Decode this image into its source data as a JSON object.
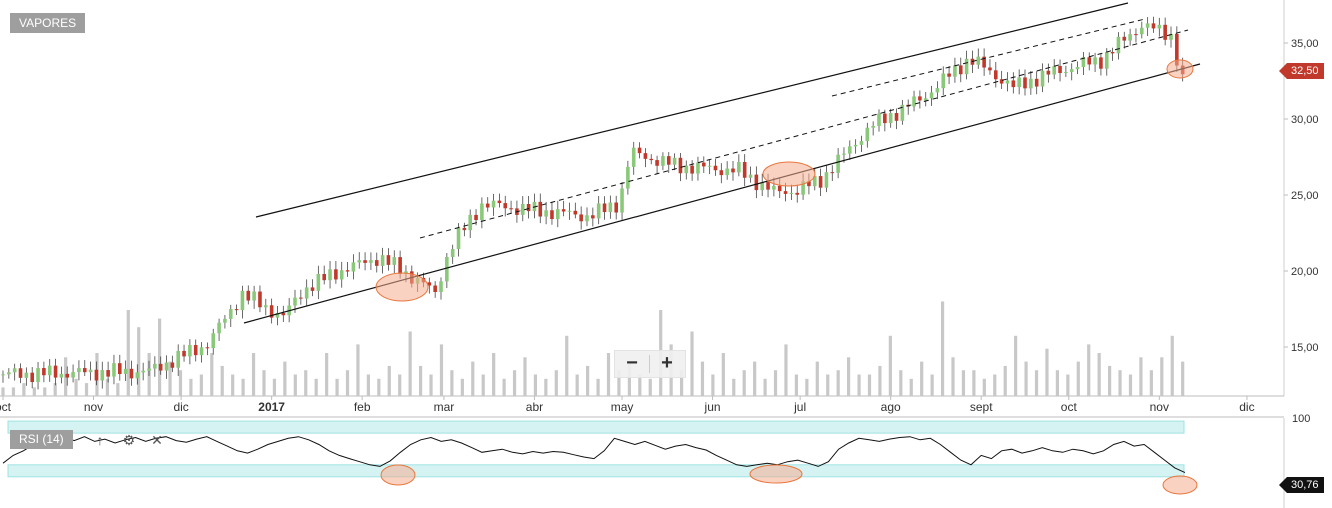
{
  "symbol": "VAPORES",
  "indicator_label": "RSI (14)",
  "last_price_label": "32,50",
  "last_rsi_label": "30,76",
  "zoom": {
    "out_label": "−",
    "in_label": "+"
  },
  "colors": {
    "up": "#8bc97a",
    "down": "#c0392b",
    "volume": "#c8c8c8",
    "rsi_band": "#d6f3f3",
    "annotation": "#f4ad8f"
  },
  "chart_data": [
    {
      "type": "candlestick",
      "title": "",
      "x_labels": [
        "oct",
        "nov",
        "dic",
        "2017",
        "feb",
        "mar",
        "abr",
        "may",
        "jun",
        "jul",
        "ago",
        "sept",
        "oct",
        "nov",
        "dic"
      ],
      "y_ticks": [
        "35,00",
        "30,00",
        "25,00",
        "20,00",
        "15,00"
      ],
      "ylim": [
        13,
        37.5
      ],
      "grid": false,
      "last_value": 32.5,
      "price_path": [
        {
          "date": "2016-10-01",
          "close": 13.2
        },
        {
          "date": "2016-11-20",
          "close": 13.4
        },
        {
          "date": "2016-12-10",
          "close": 15.2
        },
        {
          "date": "2016-12-22",
          "close": 18.5
        },
        {
          "date": "2016-12-30",
          "close": 17.6
        },
        {
          "date": "2017-01-05",
          "close": 17.0
        },
        {
          "date": "2017-01-12",
          "close": 18.8
        },
        {
          "date": "2017-01-24",
          "close": 20.0
        },
        {
          "date": "2017-02-07",
          "close": 20.9
        },
        {
          "date": "2017-02-21",
          "close": 19.3
        },
        {
          "date": "2017-02-26",
          "close": 18.5
        },
        {
          "date": "2017-03-03",
          "close": 21.5
        },
        {
          "date": "2017-03-14",
          "close": 24.4
        },
        {
          "date": "2017-04-01",
          "close": 24.0
        },
        {
          "date": "2017-04-20",
          "close": 23.6
        },
        {
          "date": "2017-04-30",
          "close": 24.5
        },
        {
          "date": "2017-05-04",
          "close": 27.8
        },
        {
          "date": "2017-05-20",
          "close": 26.9
        },
        {
          "date": "2017-06-10",
          "close": 26.6
        },
        {
          "date": "2017-06-22",
          "close": 25.2
        },
        {
          "date": "2017-06-30",
          "close": 25.3
        },
        {
          "date": "2017-07-08",
          "close": 26.0
        },
        {
          "date": "2017-07-25",
          "close": 29.5
        },
        {
          "date": "2017-08-12",
          "close": 31.4
        },
        {
          "date": "2017-08-28",
          "close": 34.0
        },
        {
          "date": "2017-09-12",
          "close": 32.1
        },
        {
          "date": "2017-09-26",
          "close": 33.1
        },
        {
          "date": "2017-10-12",
          "close": 33.9
        },
        {
          "date": "2017-10-26",
          "close": 36.2
        },
        {
          "date": "2017-11-05",
          "close": 35.5
        },
        {
          "date": "2017-11-09",
          "close": 32.5
        }
      ],
      "annotations": {
        "trend_channel": "solid upper and lower parallel trend lines",
        "midline": "dashed parallel lines",
        "highlighted_touches": 3
      }
    },
    {
      "type": "bar",
      "title": "",
      "series": [
        {
          "values": [
            2,
            2,
            3,
            2,
            2,
            3,
            9,
            4,
            3,
            10,
            4,
            3,
            20,
            16,
            10,
            18,
            8,
            6,
            4,
            5,
            10,
            7,
            5,
            4,
            10,
            6,
            4,
            8,
            5,
            6,
            4,
            10,
            4,
            6,
            12,
            5,
            4,
            7,
            5,
            15,
            7,
            5,
            12,
            6,
            4,
            8,
            5,
            10,
            4,
            6,
            9,
            5,
            4,
            6,
            14,
            5,
            7,
            4,
            10,
            6,
            8,
            5,
            4,
            20,
            12,
            6,
            15,
            8,
            5,
            10,
            4,
            6,
            8,
            4,
            6,
            12,
            5,
            4,
            8,
            5,
            6,
            9,
            5,
            5,
            7,
            14,
            6,
            4,
            8,
            5,
            22,
            9,
            6,
            6,
            4,
            5,
            7,
            14,
            8,
            6,
            11,
            6,
            5,
            8,
            12,
            10,
            7,
            6,
            5,
            9,
            6,
            9,
            14,
            8
          ]
        }
      ],
      "note": "volume histogram"
    },
    {
      "type": "line",
      "title": "RSI (14)",
      "ylim": [
        0,
        100
      ],
      "y_ticks": [
        "100"
      ],
      "last_value": 30.76,
      "bands": [
        70,
        30
      ],
      "values": [
        42,
        52,
        58,
        66,
        69,
        73,
        75,
        71,
        76,
        70,
        73,
        68,
        72,
        75,
        70,
        74,
        76,
        71,
        69,
        73,
        76,
        70,
        64,
        58,
        55,
        60,
        66,
        70,
        74,
        76,
        72,
        66,
        58,
        52,
        48,
        44,
        40,
        38,
        45,
        56,
        66,
        72,
        75,
        70,
        72,
        68,
        62,
        56,
        58,
        60,
        56,
        54,
        57,
        55,
        57,
        56,
        53,
        50,
        48,
        58,
        74,
        70,
        66,
        70,
        65,
        60,
        64,
        66,
        62,
        59,
        52,
        46,
        40,
        38,
        40,
        42,
        40,
        44,
        46,
        42,
        38,
        44,
        60,
        68,
        74,
        72,
        70,
        73,
        75,
        76,
        72,
        74,
        66,
        56,
        46,
        40,
        52,
        48,
        58,
        60,
        55,
        58,
        62,
        58,
        56,
        60,
        58,
        54,
        58,
        66,
        70,
        64,
        66,
        56,
        46,
        36,
        30
      ]
    }
  ]
}
